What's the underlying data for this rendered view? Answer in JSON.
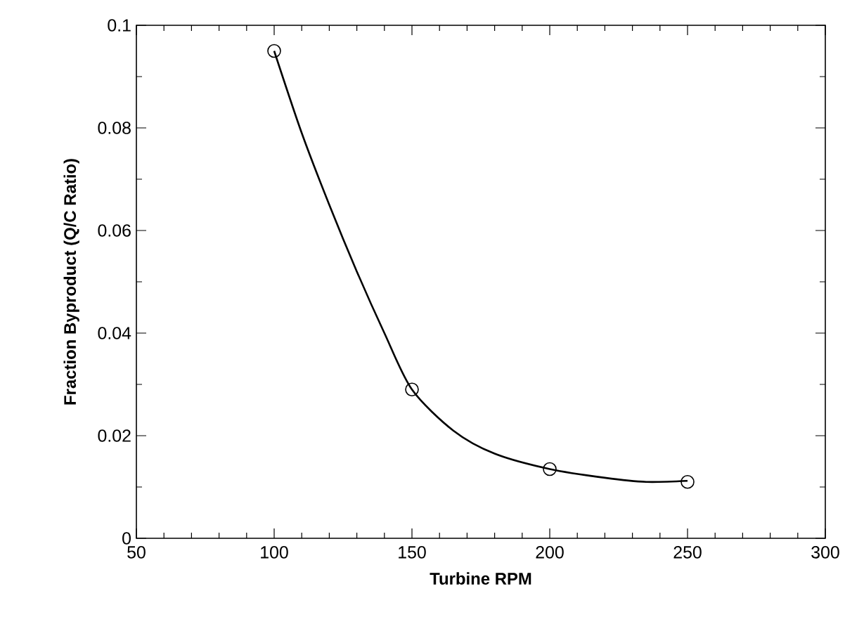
{
  "chart_data": {
    "type": "scatter",
    "xlabel": "Turbine RPM",
    "ylabel": "Fraction Byproduct (Q/C Ratio)",
    "xlim": [
      50,
      300
    ],
    "xticks": [
      50,
      100,
      150,
      200,
      250,
      300
    ],
    "ylim": [
      0,
      0.1
    ],
    "yticks": [
      0,
      0.02,
      0.04,
      0.06,
      0.08,
      0.1
    ],
    "grid": false,
    "series": [
      {
        "type": "line",
        "color": "#000000",
        "marker": "none",
        "x": [
          100,
          110,
          120,
          130,
          140,
          150,
          165,
          180,
          200,
          220,
          235,
          250
        ],
        "values": [
          0.095,
          0.079,
          0.065,
          0.052,
          0.04,
          0.029,
          0.021,
          0.0165,
          0.0135,
          0.0118,
          0.011,
          0.0112
        ]
      },
      {
        "color": "#000000",
        "marker": "circle",
        "x": [
          100,
          150,
          200,
          250
        ],
        "values": [
          0.095,
          0.029,
          0.0135,
          0.011
        ]
      }
    ]
  }
}
